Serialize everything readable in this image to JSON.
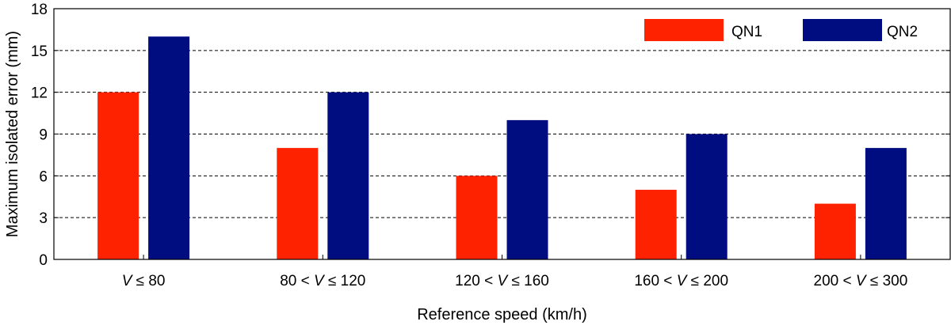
{
  "chart_data": {
    "type": "bar",
    "xlabel": "Reference speed (km/h)",
    "ylabel": "Maximum isolated error (mm)",
    "ylim": [
      0,
      18
    ],
    "yticks": [
      0,
      3,
      6,
      9,
      12,
      15,
      18
    ],
    "grid": "horizontal-dashed",
    "legend_position": "top-right",
    "categories": [
      [
        {
          "t": "V",
          "v": true
        },
        {
          "t": " ≤  80"
        }
      ],
      [
        {
          "t": "80 < "
        },
        {
          "t": "V",
          "v": true
        },
        {
          "t": " ≤ 120"
        }
      ],
      [
        {
          "t": "120 < "
        },
        {
          "t": "V",
          "v": true
        },
        {
          "t": " ≤ 160"
        }
      ],
      [
        {
          "t": "160 < "
        },
        {
          "t": "V",
          "v": true
        },
        {
          "t": " ≤ 200"
        }
      ],
      [
        {
          "t": "200 < "
        },
        {
          "t": "V",
          "v": true
        },
        {
          "t": " ≤ 300"
        }
      ]
    ],
    "series": [
      {
        "name": "QN1",
        "color": "#ff2200",
        "values": [
          12,
          8,
          6,
          5,
          4
        ]
      },
      {
        "name": "QN2",
        "color": "#000d80",
        "values": [
          16,
          12,
          10,
          9,
          8
        ]
      }
    ]
  }
}
